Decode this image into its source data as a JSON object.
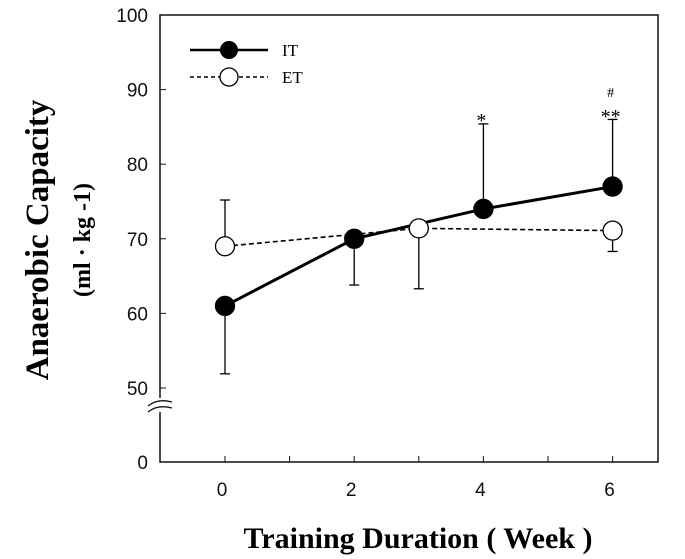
{
  "chart_data": {
    "type": "line",
    "xlabel": "Training Duration ( Week )",
    "ylabel": "Anaerobic Capacity",
    "ylabel_unit": "(ml · kg -1)",
    "x_ticks": [
      "0",
      "2",
      "4",
      "6"
    ],
    "y_ticks": [
      "100",
      "90",
      "80",
      "70",
      "60",
      "50",
      "0"
    ],
    "xlim": [
      -0.9,
      6.7
    ],
    "ylim": [
      0,
      100
    ],
    "y_axis_break": true,
    "grid": false,
    "legend_position": "top-left",
    "series": [
      {
        "name": "IT",
        "style": "solid, filled circle",
        "x": [
          0,
          2,
          4,
          6
        ],
        "y": [
          61,
          70,
          74,
          77
        ],
        "error": [
          {
            "dir": "down",
            "to": 51.9
          },
          {
            "dir": "down",
            "to": 63.8
          },
          {
            "dir": "up",
            "to": 85.4
          },
          {
            "dir": "up",
            "to": 86
          }
        ]
      },
      {
        "name": "ET",
        "style": "dashed, open circle",
        "x": [
          0,
          3,
          6
        ],
        "y": [
          69,
          71.4,
          71.1
        ],
        "error": [
          {
            "dir": "up",
            "to": 75.2
          },
          {
            "dir": "down",
            "to": 63.3
          },
          {
            "dir": "down",
            "to": 68.3
          }
        ]
      }
    ],
    "annotations": [
      {
        "x": 4,
        "text": "*"
      },
      {
        "x": 6,
        "text": "**"
      },
      {
        "x": 6,
        "text": "#"
      }
    ]
  }
}
